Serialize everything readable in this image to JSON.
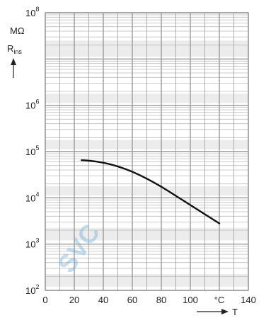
{
  "chart_data": {
    "type": "line",
    "title": "",
    "y_unit": "MΩ",
    "y_label_base": "R",
    "y_label_sub": "ins",
    "x_unit": "°C",
    "x_label": "T",
    "x_ticks": [
      "0",
      "20",
      "40",
      "60",
      "80",
      "100",
      "°C",
      "140"
    ],
    "x_tick_values": [
      0,
      20,
      40,
      60,
      80,
      100,
      120,
      140
    ],
    "y_ticks": [
      {
        "base": "10",
        "exp": "2",
        "value": 100
      },
      {
        "base": "10",
        "exp": "3",
        "value": 1000
      },
      {
        "base": "10",
        "exp": "4",
        "value": 10000
      },
      {
        "base": "10",
        "exp": "5",
        "value": 100000
      },
      {
        "base": "10",
        "exp": "6",
        "value": 1000000
      },
      {
        "base": "10",
        "exp": "8",
        "value": 100000000
      }
    ],
    "xlim": [
      0,
      140
    ],
    "ylim": [
      100,
      100000000
    ],
    "y_scale": "log",
    "grid": true,
    "series": [
      {
        "x": [
          25,
          30,
          40,
          50,
          60,
          70,
          80,
          90,
          100,
          110,
          120
        ],
        "y": [
          65000,
          64000,
          58000,
          48000,
          37000,
          26000,
          17500,
          11000,
          7000,
          4400,
          2800
        ]
      }
    ],
    "watermark": "SVC"
  },
  "colors": {
    "grid": "#9a9a9a",
    "grid_minor": "#bdbdbd",
    "curve": "#111111",
    "band": "#dcdcdc",
    "watermark": "#7fb2d8"
  }
}
